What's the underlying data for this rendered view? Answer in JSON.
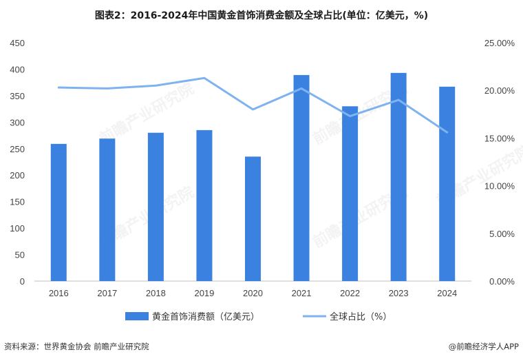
{
  "chart_data": {
    "type": "bar",
    "title": "图表2：2016-2024年中国黄金首饰消费金额及全球占比(单位：亿美元，%)",
    "categories": [
      "2016",
      "2017",
      "2018",
      "2019",
      "2020",
      "2021",
      "2022",
      "2023",
      "2024"
    ],
    "series": [
      {
        "name": "黄金首饰消费额（亿美元）",
        "type": "bar",
        "axis": "left",
        "color": "#3b82e0",
        "values": [
          259,
          269,
          280,
          285,
          235,
          389,
          330,
          393,
          367
        ]
      },
      {
        "name": "全球占比（%）",
        "type": "line",
        "axis": "right",
        "color": "#7fb3f0",
        "values": [
          20.3,
          20.2,
          20.5,
          21.3,
          18.0,
          20.2,
          17.3,
          19.0,
          15.6
        ]
      }
    ],
    "y_left": {
      "min": 0,
      "max": 450,
      "ticks": [
        "0",
        "50",
        "100",
        "150",
        "200",
        "250",
        "300",
        "350",
        "400",
        "450"
      ]
    },
    "y_right": {
      "min": 0,
      "max": 25,
      "ticks": [
        "0.00%",
        "5.00%",
        "10.00%",
        "15.00%",
        "20.00%",
        "25.00%"
      ]
    },
    "grid": false,
    "legend_position": "bottom"
  },
  "footer": {
    "source": "资料来源：世界黄金协会 前瞻产业研究院",
    "brand": "@前瞻经济学人APP"
  },
  "watermark": {
    "text": "前瞻产业研究院"
  }
}
